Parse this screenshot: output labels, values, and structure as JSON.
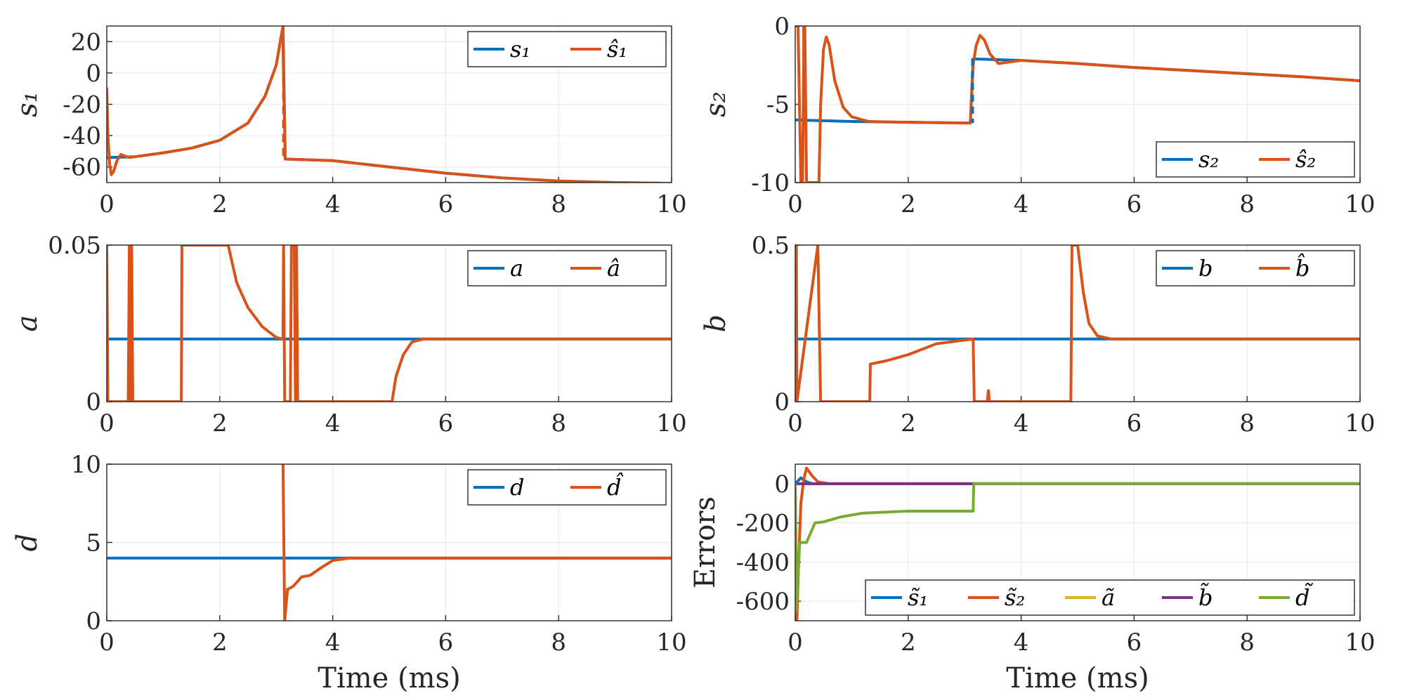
{
  "colors": {
    "blue": "#0072BD",
    "orange": "#D95319",
    "yellow": "#EDB120",
    "purple": "#7E2F8E",
    "green": "#77AC30",
    "grid": "#ebebeb",
    "axis": "#262626"
  },
  "chart_data": [
    {
      "type": "line",
      "ylabel": "s₁",
      "xlabel": "",
      "xlim": [
        0,
        10
      ],
      "ylim": [
        -70,
        30
      ],
      "xticks": [
        "0",
        "2",
        "4",
        "6",
        "8",
        "10"
      ],
      "yticks": [
        "20",
        "0",
        "-20",
        "-40",
        "-60"
      ],
      "ytick_values": [
        20,
        0,
        -20,
        -40,
        -60
      ],
      "legend_position": "top-right",
      "grid": true,
      "series": [
        {
          "name": "s₁",
          "color": "blue",
          "points": [
            [
              0,
              -54
            ],
            [
              0.5,
              -53.5
            ],
            [
              1,
              -51
            ],
            [
              1.5,
              -48
            ],
            [
              2,
              -43
            ],
            [
              2.5,
              -32
            ],
            [
              2.8,
              -15
            ],
            [
              3.0,
              5
            ],
            [
              3.12,
              30
            ],
            [
              3.16,
              -55
            ],
            [
              4,
              -56
            ],
            [
              5,
              -60
            ],
            [
              6,
              -64
            ],
            [
              7,
              -67
            ],
            [
              8,
              -69
            ],
            [
              9,
              -70
            ],
            [
              10,
              -70.5
            ]
          ]
        },
        {
          "name": "ŝ₁",
          "color": "orange",
          "points": [
            [
              0,
              -10
            ],
            [
              0.02,
              -40
            ],
            [
              0.05,
              -58
            ],
            [
              0.08,
              -65
            ],
            [
              0.12,
              -63
            ],
            [
              0.18,
              -56
            ],
            [
              0.25,
              -52
            ],
            [
              0.32,
              -53
            ],
            [
              0.4,
              -54
            ],
            [
              0.5,
              -53.5
            ],
            [
              1,
              -51
            ],
            [
              1.5,
              -48
            ],
            [
              2,
              -43
            ],
            [
              2.5,
              -32
            ],
            [
              2.8,
              -15
            ],
            [
              3.0,
              5
            ],
            [
              3.12,
              30
            ],
            [
              3.12,
              15
            ],
            [
              3.16,
              -55
            ],
            [
              4,
              -56
            ],
            [
              5,
              -60
            ],
            [
              6,
              -64
            ],
            [
              7,
              -67
            ],
            [
              8,
              -69
            ],
            [
              9,
              -70
            ],
            [
              10,
              -70.5
            ]
          ]
        }
      ]
    },
    {
      "type": "line",
      "ylabel": "s₂",
      "xlabel": "",
      "xlim": [
        0,
        10
      ],
      "ylim": [
        -10,
        0
      ],
      "xticks": [
        "0",
        "2",
        "4",
        "6",
        "8",
        "10"
      ],
      "yticks": [
        "0",
        "-5",
        "-10"
      ],
      "ytick_values": [
        0,
        -5,
        -10
      ],
      "legend_position": "bottom-right",
      "grid": true,
      "series": [
        {
          "name": "s₂",
          "color": "blue",
          "points": [
            [
              0,
              -6
            ],
            [
              1,
              -6.1
            ],
            [
              2,
              -6.15
            ],
            [
              3.1,
              -6.2
            ],
            [
              3.15,
              -2.1
            ],
            [
              4,
              -2.2
            ],
            [
              5,
              -2.4
            ],
            [
              6,
              -2.65
            ],
            [
              7,
              -2.85
            ],
            [
              8,
              -3.05
            ],
            [
              9,
              -3.25
            ],
            [
              10,
              -3.5
            ]
          ]
        },
        {
          "name": "ŝ₂",
          "color": "orange",
          "points": [
            [
              0,
              0
            ],
            [
              0.05,
              0
            ],
            [
              0.1,
              -10
            ],
            [
              0.13,
              -10
            ],
            [
              0.15,
              -2
            ],
            [
              0.15,
              0
            ],
            [
              0.17,
              0
            ],
            [
              0.2,
              -10
            ],
            [
              0.42,
              -10
            ],
            [
              0.45,
              -5
            ],
            [
              0.5,
              -1.5
            ],
            [
              0.55,
              -0.7
            ],
            [
              0.6,
              -1.2
            ],
            [
              0.7,
              -3.5
            ],
            [
              0.85,
              -5.2
            ],
            [
              1,
              -5.8
            ],
            [
              1.3,
              -6.1
            ],
            [
              2,
              -6.15
            ],
            [
              3.1,
              -6.2
            ],
            [
              3.15,
              -2.5
            ],
            [
              3.2,
              -1.3
            ],
            [
              3.27,
              -0.6
            ],
            [
              3.35,
              -0.9
            ],
            [
              3.45,
              -1.8
            ],
            [
              3.6,
              -2.4
            ],
            [
              3.8,
              -2.3
            ],
            [
              4,
              -2.2
            ],
            [
              5,
              -2.4
            ],
            [
              6,
              -2.65
            ],
            [
              7,
              -2.85
            ],
            [
              8,
              -3.05
            ],
            [
              9,
              -3.25
            ],
            [
              10,
              -3.5
            ]
          ]
        }
      ]
    },
    {
      "type": "line",
      "ylabel": "a",
      "xlabel": "",
      "xlim": [
        0,
        10
      ],
      "ylim": [
        0,
        0.05
      ],
      "xticks": [
        "0",
        "2",
        "4",
        "6",
        "8",
        "10"
      ],
      "yticks": [
        "0.05",
        "0"
      ],
      "ytick_values": [
        0.05,
        0
      ],
      "legend_position": "top-right",
      "grid": true,
      "series": [
        {
          "name": "a",
          "color": "blue",
          "points": [
            [
              0,
              0.02
            ],
            [
              10,
              0.02
            ]
          ]
        },
        {
          "name": "â",
          "color": "orange",
          "points": [
            [
              0,
              0.05
            ],
            [
              0.02,
              0
            ],
            [
              0.38,
              0
            ],
            [
              0.4,
              0.05
            ],
            [
              0.42,
              0
            ],
            [
              0.44,
              0.05
            ],
            [
              0.46,
              0
            ],
            [
              1.32,
              0
            ],
            [
              1.33,
              0.05
            ],
            [
              2.15,
              0.05
            ],
            [
              2.3,
              0.038
            ],
            [
              2.5,
              0.03
            ],
            [
              2.75,
              0.024
            ],
            [
              3.0,
              0.0205
            ],
            [
              3.12,
              0.02
            ],
            [
              3.13,
              0.05
            ],
            [
              3.15,
              0
            ],
            [
              3.25,
              0
            ],
            [
              3.27,
              0.05
            ],
            [
              3.32,
              0.05
            ],
            [
              3.34,
              0
            ],
            [
              3.36,
              0.05
            ],
            [
              3.38,
              0
            ],
            [
              5.05,
              0
            ],
            [
              5.12,
              0.008
            ],
            [
              5.25,
              0.015
            ],
            [
              5.4,
              0.019
            ],
            [
              5.6,
              0.02
            ],
            [
              10,
              0.02
            ]
          ]
        }
      ]
    },
    {
      "type": "line",
      "ylabel": "b",
      "xlabel": "",
      "xlim": [
        0,
        10
      ],
      "ylim": [
        0,
        0.5
      ],
      "xticks": [
        "0",
        "2",
        "4",
        "6",
        "8",
        "10"
      ],
      "yticks": [
        "0.5",
        "0"
      ],
      "ytick_values": [
        0.5,
        0
      ],
      "legend_position": "top-right",
      "grid": true,
      "series": [
        {
          "name": "b",
          "color": "blue",
          "points": [
            [
              0,
              0.2
            ],
            [
              10,
              0.2
            ]
          ]
        },
        {
          "name": "b̂",
          "color": "orange",
          "points": [
            [
              0,
              0
            ],
            [
              0.02,
              0.5
            ],
            [
              0.03,
              0
            ],
            [
              0.4,
              0.5
            ],
            [
              0.45,
              0
            ],
            [
              1.32,
              0
            ],
            [
              1.33,
              0.12
            ],
            [
              1.6,
              0.13
            ],
            [
              2.0,
              0.15
            ],
            [
              2.5,
              0.185
            ],
            [
              3.15,
              0.2
            ],
            [
              3.17,
              0
            ],
            [
              3.4,
              0
            ],
            [
              3.42,
              0.035
            ],
            [
              3.44,
              0
            ],
            [
              4.88,
              0
            ],
            [
              4.9,
              0.5
            ],
            [
              5.0,
              0.5
            ],
            [
              5.1,
              0.35
            ],
            [
              5.2,
              0.25
            ],
            [
              5.35,
              0.21
            ],
            [
              5.6,
              0.2
            ],
            [
              10,
              0.2
            ]
          ]
        }
      ]
    },
    {
      "type": "line",
      "ylabel": "d",
      "xlabel": "Time (ms)",
      "xlim": [
        0,
        10
      ],
      "ylim": [
        0,
        10
      ],
      "xticks": [
        "0",
        "2",
        "4",
        "6",
        "8",
        "10"
      ],
      "yticks": [
        "10",
        "5",
        "0"
      ],
      "ytick_values": [
        10,
        5,
        0
      ],
      "legend_position": "top-right",
      "grid": true,
      "series": [
        {
          "name": "d",
          "color": "blue",
          "points": [
            [
              0,
              4
            ],
            [
              10,
              4
            ]
          ]
        },
        {
          "name": "d̂",
          "color": "orange",
          "points": [
            [
              3.12,
              10
            ],
            [
              3.15,
              0
            ],
            [
              3.2,
              2
            ],
            [
              3.3,
              2.2
            ],
            [
              3.45,
              2.8
            ],
            [
              3.6,
              2.9
            ],
            [
              3.8,
              3.4
            ],
            [
              4.0,
              3.85
            ],
            [
              4.3,
              4.0
            ],
            [
              10,
              4
            ]
          ]
        }
      ]
    },
    {
      "type": "line",
      "ylabel": "Errors",
      "xlabel": "Time (ms)",
      "xlim": [
        0,
        10
      ],
      "ylim": [
        -700,
        100
      ],
      "xticks": [
        "0",
        "2",
        "4",
        "6",
        "8",
        "10"
      ],
      "yticks": [
        "0",
        "-200",
        "-400",
        "-600"
      ],
      "ytick_values": [
        0,
        -200,
        -400,
        -600
      ],
      "legend_position": "bottom-right",
      "grid": true,
      "series": [
        {
          "name": "s̃₁",
          "color": "blue",
          "points": [
            [
              0,
              0
            ],
            [
              0.1,
              30
            ],
            [
              0.2,
              10
            ],
            [
              0.3,
              0
            ],
            [
              10,
              0
            ]
          ]
        },
        {
          "name": "s̃₂",
          "color": "orange",
          "points": [
            [
              0,
              0
            ],
            [
              0.03,
              -700
            ],
            [
              0.06,
              -400
            ],
            [
              0.1,
              -100
            ],
            [
              0.15,
              20
            ],
            [
              0.2,
              80
            ],
            [
              0.3,
              40
            ],
            [
              0.4,
              10
            ],
            [
              0.6,
              0
            ],
            [
              10,
              0
            ]
          ]
        },
        {
          "name": "ã",
          "color": "yellow",
          "points": [
            [
              0,
              0
            ],
            [
              10,
              0
            ]
          ]
        },
        {
          "name": "b̃",
          "color": "purple",
          "points": [
            [
              0,
              0
            ],
            [
              10,
              0
            ]
          ]
        },
        {
          "name": "d̃",
          "color": "green",
          "points": [
            [
              0,
              0
            ],
            [
              0.02,
              -650
            ],
            [
              0.08,
              -300
            ],
            [
              0.2,
              -300
            ],
            [
              0.35,
              -200
            ],
            [
              0.5,
              -195
            ],
            [
              0.8,
              -170
            ],
            [
              1.2,
              -150
            ],
            [
              2,
              -140
            ],
            [
              3.15,
              -140
            ],
            [
              3.16,
              0
            ],
            [
              10,
              0
            ]
          ]
        }
      ]
    }
  ]
}
